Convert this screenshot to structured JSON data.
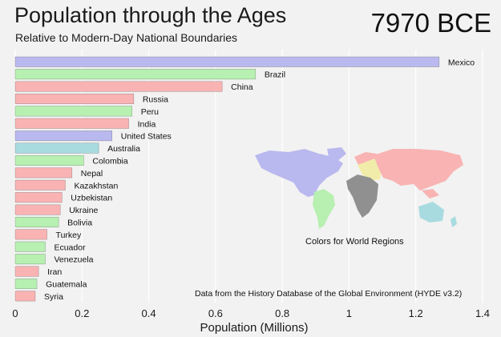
{
  "header": {
    "title": "Population through the Ages",
    "subtitle": "Relative to Modern-Day National Boundaries",
    "year": "7970 BCE"
  },
  "notes": {
    "regions": "Colors for World Regions",
    "source": "Data from the History Database of the Global Environment (HYDE v3.2)"
  },
  "colors": {
    "latin_america": "#b7f0b1",
    "asia": "#f9b3b3",
    "europe_russia": "#f9b3b3",
    "north_america": "#b9b9ef",
    "oceania": "#a8dbe0",
    "africa": "#909090",
    "middle_east": "#f1ecaa"
  },
  "chart_data": {
    "type": "bar",
    "orientation": "horizontal",
    "xlabel": "Population (Millions)",
    "xlim": [
      0,
      1.4
    ],
    "xticks": [
      0,
      0.2,
      0.4,
      0.6,
      0.8,
      1,
      1.2,
      1.4
    ],
    "xtick_labels": [
      "0",
      "0.2",
      "0.4",
      "0.6",
      "0.8",
      "1",
      "1.2",
      "1.4"
    ],
    "grid": "vertical",
    "categories": [
      "Mexico",
      "Brazil",
      "China",
      "Russia",
      "Peru",
      "India",
      "United States",
      "Australia",
      "Colombia",
      "Nepal",
      "Kazakhstan",
      "Uzbekistan",
      "Ukraine",
      "Bolivia",
      "Turkey",
      "Ecuador",
      "Venezuela",
      "Iran",
      "Guatemala",
      "Syria"
    ],
    "values": [
      1.27,
      0.72,
      0.62,
      0.355,
      0.35,
      0.34,
      0.29,
      0.25,
      0.205,
      0.17,
      0.15,
      0.14,
      0.135,
      0.13,
      0.095,
      0.09,
      0.09,
      0.07,
      0.065,
      0.06
    ],
    "regions": [
      "north_america",
      "latin_america",
      "asia",
      "europe_russia",
      "latin_america",
      "asia",
      "north_america",
      "oceania",
      "latin_america",
      "asia",
      "asia",
      "asia",
      "europe_russia",
      "latin_america",
      "asia",
      "latin_america",
      "latin_america",
      "asia",
      "latin_america",
      "asia"
    ]
  }
}
